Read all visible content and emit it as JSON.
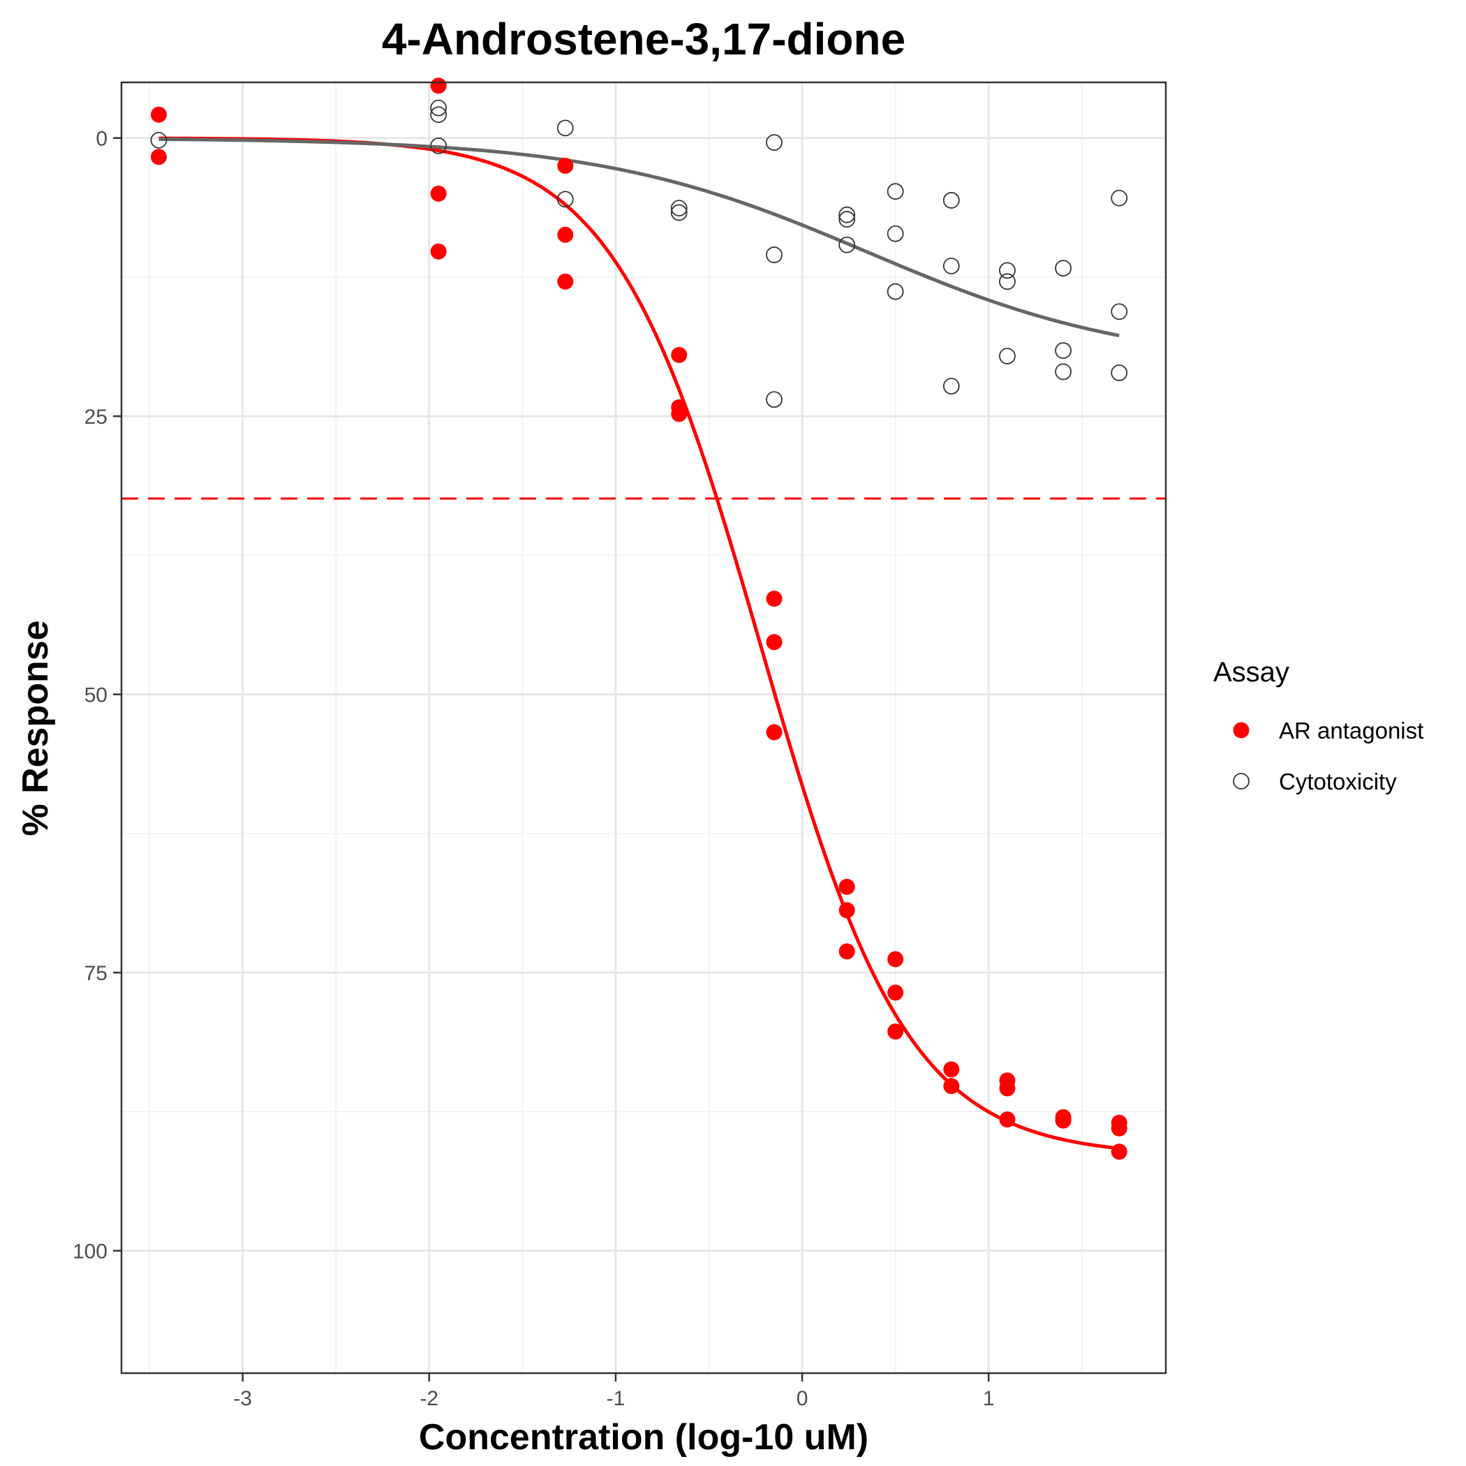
{
  "chart_data": {
    "type": "scatter",
    "title": "4-Androstene-3,17-dione",
    "xlabel": "Concentration (log-10 uM)",
    "ylabel": "% Response",
    "xlim": [
      -3.65,
      1.95
    ],
    "ylim": [
      111,
      -5
    ],
    "y_reversed": true,
    "x_ticks": [
      {
        "value": -3,
        "label": "-3"
      },
      {
        "value": -2,
        "label": "-2"
      },
      {
        "value": -1,
        "label": "-1"
      },
      {
        "value": 0,
        "label": "0"
      },
      {
        "value": 1,
        "label": "1"
      }
    ],
    "y_ticks": [
      {
        "value": 0,
        "label": "0"
      },
      {
        "value": 25,
        "label": "25"
      },
      {
        "value": 50,
        "label": "50"
      },
      {
        "value": 75,
        "label": "75"
      },
      {
        "value": 100,
        "label": "100"
      }
    ],
    "x_minor_grid": [
      -3.5,
      -2.5,
      -1.5,
      -0.5,
      0.5,
      1.5
    ],
    "y_minor_grid": [
      12.5,
      37.5,
      62.5,
      87.5
    ],
    "grid": true,
    "legend": {
      "title": "Assay",
      "position": "right",
      "entries": [
        {
          "label": "AR antagonist",
          "marker": "filled-circle",
          "color": "#ff0000"
        },
        {
          "label": "Cytotoxicity",
          "marker": "open-circle",
          "color": "#333333"
        }
      ]
    },
    "reference_line": {
      "y": 32.4,
      "color": "#ff0000",
      "style": "dashed"
    },
    "series": [
      {
        "name": "AR antagonist",
        "color": "#ff0000",
        "marker": "filled-circle",
        "points": [
          [
            -3.45,
            -2.1
          ],
          [
            -3.45,
            1.7
          ],
          [
            -1.95,
            -4.7
          ],
          [
            -1.95,
            5.0
          ],
          [
            -1.95,
            10.2
          ],
          [
            -1.27,
            2.5
          ],
          [
            -1.27,
            8.7
          ],
          [
            -1.27,
            12.9
          ],
          [
            -0.66,
            19.5
          ],
          [
            -0.66,
            24.2
          ],
          [
            -0.66,
            24.8
          ],
          [
            -0.15,
            41.4
          ],
          [
            -0.15,
            45.3
          ],
          [
            -0.15,
            53.4
          ],
          [
            0.24,
            67.3
          ],
          [
            0.24,
            69.4
          ],
          [
            0.24,
            73.1
          ],
          [
            0.5,
            73.8
          ],
          [
            0.5,
            76.8
          ],
          [
            0.5,
            80.3
          ],
          [
            0.8,
            83.7
          ],
          [
            0.8,
            85.2
          ],
          [
            1.1,
            84.7
          ],
          [
            1.1,
            85.4
          ],
          [
            1.1,
            88.2
          ],
          [
            1.4,
            88.0
          ],
          [
            1.4,
            88.3
          ],
          [
            1.7,
            88.5
          ],
          [
            1.7,
            89.0
          ],
          [
            1.7,
            91.1
          ]
        ],
        "fit_curve": {
          "model": "hill",
          "top": 91.5,
          "ac50_log": -0.22,
          "hill_slope": 1.1,
          "x_range": [
            -3.45,
            1.7
          ]
        }
      },
      {
        "name": "Cytotoxicity",
        "color": "#333333",
        "marker": "open-circle",
        "points": [
          [
            -3.45,
            0.2
          ],
          [
            -1.95,
            -2.7
          ],
          [
            -1.95,
            -2.1
          ],
          [
            -1.95,
            0.7
          ],
          [
            -1.27,
            -0.9
          ],
          [
            -1.27,
            5.5
          ],
          [
            -0.66,
            6.3
          ],
          [
            -0.66,
            6.7
          ],
          [
            -0.15,
            0.4
          ],
          [
            -0.15,
            10.5
          ],
          [
            -0.15,
            23.5
          ],
          [
            0.24,
            6.9
          ],
          [
            0.24,
            7.3
          ],
          [
            0.24,
            9.6
          ],
          [
            0.5,
            4.8
          ],
          [
            0.5,
            8.6
          ],
          [
            0.5,
            13.8
          ],
          [
            0.8,
            5.6
          ],
          [
            0.8,
            11.5
          ],
          [
            0.8,
            22.3
          ],
          [
            1.1,
            11.9
          ],
          [
            1.1,
            12.9
          ],
          [
            1.1,
            19.6
          ],
          [
            1.4,
            11.7
          ],
          [
            1.4,
            19.1
          ],
          [
            1.4,
            21.0
          ],
          [
            1.7,
            5.4
          ],
          [
            1.7,
            15.6
          ],
          [
            1.7,
            21.1
          ]
        ],
        "fit_curve": {
          "model": "hill",
          "top": 20.5,
          "ac50_log": 0.35,
          "hill_slope": 0.6,
          "x_range": [
            -3.45,
            1.7
          ]
        }
      }
    ]
  }
}
